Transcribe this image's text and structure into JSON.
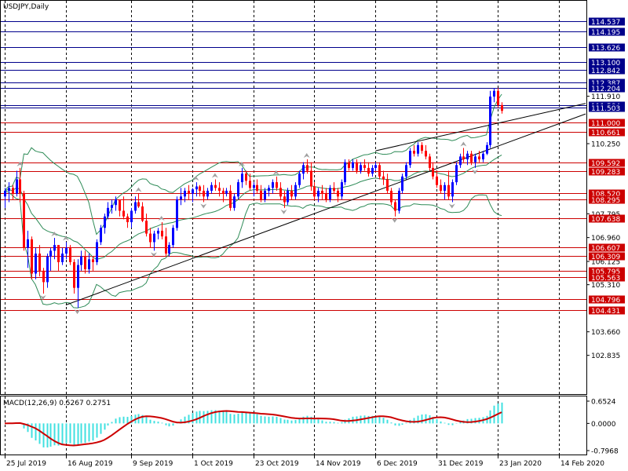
{
  "symbol_title": "USDJPY,Daily",
  "macd_title": "MACD(12,26,9) 0.5267 0.2751",
  "colors": {
    "bull": "#0000ff",
    "bear": "#ff0000",
    "blue_level": "#00008b",
    "red_level": "#cc0000",
    "bands": "#2e8b57",
    "histogram": "#40e0e0",
    "signal": "#cc0000",
    "trendline": "#000000",
    "fractal": "#a0a0a0"
  },
  "chart_data": [
    {
      "type": "candlestick",
      "title": "USDJPY,Daily",
      "x_tick_labels": [
        "25 Jul 2019",
        "16 Aug 2019",
        "9 Sep 2019",
        "1 Oct 2019",
        "23 Oct 2019",
        "14 Nov 2019",
        "6 Dec 2019",
        "31 Dec 2019",
        "23 Jan 2020",
        "14 Feb 2020"
      ],
      "y_tick_labels": [
        "111.910",
        "110.250",
        "107.795",
        "106.960",
        "106.125",
        "105.310",
        "103.660",
        "102.835"
      ],
      "ylim": [
        102.0,
        115.0
      ],
      "grid": true,
      "blue_levels": [
        "114.537",
        "114.195",
        "113.626",
        "113.100",
        "112.842",
        "112.387",
        "112.204",
        "111.584",
        "111.503"
      ],
      "red_levels": [
        "111.000",
        "110.661",
        "109.592",
        "109.283",
        "108.520",
        "108.295",
        "107.638",
        "106.607",
        "106.309",
        "105.795",
        "105.563",
        "104.796",
        "104.431"
      ],
      "trendlines": [
        {
          "from": [
            "16 Aug 2019",
            104.6
          ],
          "to": [
            "14 Feb 2020",
            110.95
          ],
          "extended": true
        },
        {
          "from": [
            "6 Dec 2019",
            110.0
          ],
          "to": [
            "14 Feb 2020",
            111.45
          ],
          "extended": true
        }
      ],
      "ohlc": [
        [
          108.4,
          108.7,
          108.0,
          108.6
        ],
        [
          108.6,
          108.9,
          108.2,
          108.7
        ],
        [
          108.7,
          108.8,
          108.3,
          108.5
        ],
        [
          108.5,
          109.3,
          108.4,
          109.0
        ],
        [
          109.0,
          109.4,
          108.2,
          108.5
        ],
        [
          108.5,
          108.6,
          106.5,
          106.6
        ],
        [
          106.6,
          107.2,
          105.9,
          106.9
        ],
        [
          106.9,
          107.0,
          105.5,
          105.7
        ],
        [
          105.7,
          106.6,
          105.5,
          106.4
        ],
        [
          106.4,
          106.7,
          105.6,
          105.8
        ],
        [
          105.8,
          105.9,
          105.0,
          105.4
        ],
        [
          105.4,
          106.4,
          105.2,
          106.3
        ],
        [
          106.3,
          106.6,
          105.8,
          106.5
        ],
        [
          106.5,
          106.95,
          106.2,
          106.7
        ],
        [
          106.7,
          106.7,
          105.8,
          106.1
        ],
        [
          106.1,
          106.6,
          106.0,
          106.4
        ],
        [
          106.4,
          106.8,
          106.2,
          106.6
        ],
        [
          106.6,
          106.7,
          106.0,
          106.1
        ],
        [
          106.1,
          106.2,
          105.0,
          105.2
        ],
        [
          105.2,
          106.2,
          104.5,
          106.0
        ],
        [
          106.0,
          106.5,
          105.8,
          106.3
        ],
        [
          106.3,
          106.5,
          105.7,
          105.85
        ],
        [
          105.85,
          106.4,
          105.7,
          106.2
        ],
        [
          106.2,
          106.3,
          105.8,
          106.1
        ],
        [
          106.1,
          106.9,
          106.0,
          106.8
        ],
        [
          106.8,
          107.4,
          106.7,
          107.3
        ],
        [
          107.3,
          107.8,
          107.1,
          107.7
        ],
        [
          107.7,
          108.2,
          107.6,
          108.0
        ],
        [
          108.0,
          108.3,
          107.8,
          108.1
        ],
        [
          108.1,
          108.4,
          107.9,
          108.3
        ],
        [
          108.3,
          108.2,
          107.7,
          107.9
        ],
        [
          107.9,
          108.4,
          107.6,
          107.7
        ],
        [
          107.7,
          107.8,
          107.3,
          107.5
        ],
        [
          107.5,
          108.0,
          107.3,
          107.9
        ],
        [
          107.9,
          108.4,
          107.8,
          108.2
        ],
        [
          108.2,
          108.5,
          108.0,
          108.05
        ],
        [
          108.05,
          108.2,
          107.5,
          107.55
        ],
        [
          107.55,
          107.8,
          107.0,
          107.1
        ],
        [
          107.1,
          107.3,
          106.6,
          106.8
        ],
        [
          106.8,
          107.2,
          106.5,
          107.1
        ],
        [
          107.1,
          107.3,
          106.9,
          107.2
        ],
        [
          107.2,
          107.5,
          106.9,
          107.0
        ],
        [
          107.0,
          107.3,
          106.3,
          106.4
        ],
        [
          106.4,
          106.8,
          106.3,
          106.7
        ],
        [
          106.7,
          107.4,
          106.6,
          107.3
        ],
        [
          107.3,
          108.4,
          107.2,
          108.3
        ],
        [
          108.3,
          108.7,
          108.1,
          108.4
        ],
        [
          108.4,
          108.7,
          108.2,
          108.6
        ],
        [
          108.6,
          108.8,
          108.3,
          108.5
        ],
        [
          108.5,
          108.7,
          108.2,
          108.65
        ],
        [
          108.65,
          108.9,
          108.4,
          108.75
        ],
        [
          108.75,
          108.8,
          108.4,
          108.6
        ],
        [
          108.6,
          108.8,
          108.2,
          108.4
        ],
        [
          108.4,
          108.7,
          108.3,
          108.6
        ],
        [
          108.6,
          108.9,
          108.5,
          108.8
        ],
        [
          108.8,
          109.0,
          108.6,
          108.7
        ],
        [
          108.7,
          108.9,
          108.4,
          108.6
        ],
        [
          108.6,
          108.7,
          108.2,
          108.5
        ],
        [
          108.5,
          108.7,
          108.4,
          108.6
        ],
        [
          108.6,
          108.8,
          107.9,
          108.0
        ],
        [
          108.0,
          108.5,
          107.9,
          108.4
        ],
        [
          108.4,
          109.0,
          108.3,
          108.9
        ],
        [
          108.9,
          109.4,
          108.7,
          109.2
        ],
        [
          109.2,
          109.3,
          108.8,
          108.95
        ],
        [
          108.95,
          109.2,
          108.6,
          108.7
        ],
        [
          108.7,
          108.9,
          108.4,
          108.8
        ],
        [
          108.8,
          109.0,
          108.5,
          108.6
        ],
        [
          108.6,
          108.8,
          108.2,
          108.3
        ],
        [
          108.3,
          108.7,
          108.2,
          108.6
        ],
        [
          108.6,
          108.8,
          108.4,
          108.7
        ],
        [
          108.7,
          109.0,
          108.5,
          108.9
        ],
        [
          108.9,
          109.1,
          108.6,
          108.7
        ],
        [
          108.7,
          108.9,
          108.3,
          108.4
        ],
        [
          108.4,
          108.6,
          108.0,
          108.2
        ],
        [
          108.2,
          108.7,
          108.1,
          108.6
        ],
        [
          108.6,
          108.8,
          108.3,
          108.4
        ],
        [
          108.4,
          108.9,
          108.3,
          108.8
        ],
        [
          108.8,
          109.3,
          108.7,
          109.2
        ],
        [
          109.2,
          109.6,
          109.0,
          109.5
        ],
        [
          109.5,
          109.7,
          109.2,
          109.3
        ],
        [
          109.3,
          109.6,
          108.6,
          108.75
        ],
        [
          108.75,
          108.9,
          108.3,
          108.4
        ],
        [
          108.4,
          108.7,
          108.2,
          108.6
        ],
        [
          108.6,
          108.8,
          108.3,
          108.5
        ],
        [
          108.5,
          108.7,
          108.2,
          108.3
        ],
        [
          108.3,
          108.8,
          108.2,
          108.7
        ],
        [
          108.7,
          108.9,
          108.5,
          108.6
        ],
        [
          108.6,
          108.7,
          108.2,
          108.4
        ],
        [
          108.4,
          109.0,
          108.3,
          108.9
        ],
        [
          108.9,
          109.7,
          108.8,
          109.6
        ],
        [
          109.6,
          109.7,
          109.3,
          109.4
        ],
        [
          109.4,
          109.7,
          109.3,
          109.6
        ],
        [
          109.6,
          109.7,
          109.2,
          109.3
        ],
        [
          109.3,
          109.6,
          109.2,
          109.5
        ],
        [
          109.5,
          109.7,
          109.3,
          109.4
        ],
        [
          109.4,
          109.6,
          109.1,
          109.2
        ],
        [
          109.2,
          109.5,
          109.1,
          109.4
        ],
        [
          109.4,
          109.6,
          109.3,
          109.5
        ],
        [
          109.5,
          109.6,
          109.0,
          109.1
        ],
        [
          109.1,
          109.3,
          108.8,
          109.0
        ],
        [
          109.0,
          109.2,
          108.5,
          108.6
        ],
        [
          108.6,
          108.7,
          108.1,
          108.2
        ],
        [
          108.2,
          108.3,
          107.7,
          107.9
        ],
        [
          107.9,
          108.7,
          107.8,
          108.6
        ],
        [
          108.6,
          109.2,
          108.5,
          109.1
        ],
        [
          109.1,
          109.6,
          109.0,
          109.5
        ],
        [
          109.5,
          110.1,
          109.4,
          110.0
        ],
        [
          110.0,
          110.2,
          109.8,
          109.9
        ],
        [
          109.9,
          110.3,
          109.8,
          110.2
        ],
        [
          110.2,
          110.3,
          109.9,
          110.0
        ],
        [
          110.0,
          110.2,
          109.7,
          109.8
        ],
        [
          109.8,
          109.9,
          109.3,
          109.4
        ],
        [
          109.4,
          109.6,
          109.0,
          109.1
        ],
        [
          109.1,
          109.3,
          108.7,
          108.8
        ],
        [
          108.8,
          109.0,
          108.5,
          108.6
        ],
        [
          108.6,
          108.9,
          108.3,
          108.8
        ],
        [
          108.8,
          109.3,
          108.3,
          108.4
        ],
        [
          108.4,
          109.0,
          108.2,
          108.9
        ],
        [
          108.9,
          109.6,
          108.8,
          109.5
        ],
        [
          109.5,
          109.9,
          109.4,
          109.8
        ],
        [
          109.8,
          110.1,
          109.6,
          109.7
        ],
        [
          109.7,
          110.0,
          109.5,
          109.9
        ],
        [
          109.9,
          110.0,
          109.5,
          109.6
        ],
        [
          109.6,
          109.9,
          109.4,
          109.8
        ],
        [
          109.8,
          110.0,
          109.6,
          109.7
        ],
        [
          109.7,
          110.0,
          109.6,
          109.9
        ],
        [
          109.9,
          110.3,
          109.85,
          110.2
        ],
        [
          110.2,
          112.1,
          110.1,
          111.9
        ],
        [
          111.9,
          112.2,
          111.7,
          112.1
        ],
        [
          112.1,
          112.2,
          111.5,
          111.6
        ],
        [
          111.6,
          111.7,
          111.3,
          111.4
        ]
      ]
    },
    {
      "type": "macd",
      "title": "MACD(12,26,9) 0.5267 0.2751",
      "y_tick_labels": [
        "0.6524",
        "0.0000",
        "-0.7968"
      ],
      "ylim": [
        -0.7968,
        0.6524
      ],
      "main_last": 0.5267,
      "signal_last": 0.2751
    }
  ]
}
